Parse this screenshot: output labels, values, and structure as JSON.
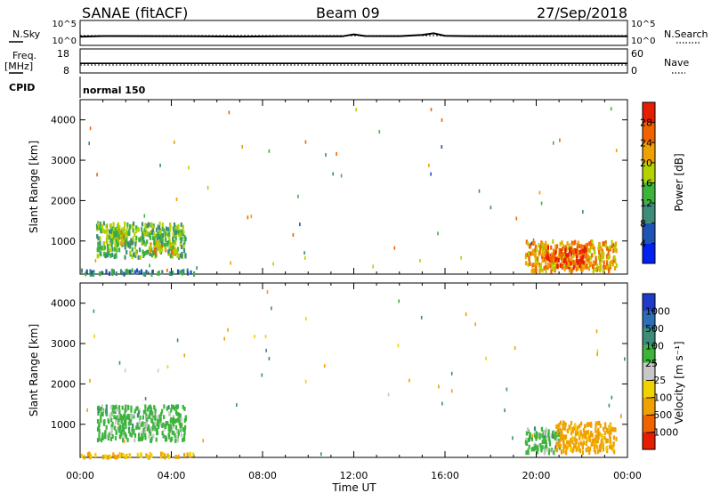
{
  "header": {
    "station": "SANAE (fitACF)",
    "beam": "Beam 09",
    "date": "27/Sep/2018"
  },
  "strips": {
    "nsky_label": "N.Sky",
    "nsearch_label": "N.Search",
    "nsky_ticks": [
      "10^5",
      "10^0"
    ],
    "nsearch_ticks": [
      "10^5",
      "10^0"
    ],
    "freq_label": "Freq.",
    "freq_unit": "[MHz]",
    "freq_ticks": [
      "18",
      "8"
    ],
    "nave_label": "Nave",
    "nave_ticks": [
      "60",
      "0"
    ],
    "cpid_label": "CPID",
    "cpid_value": "normal 150"
  },
  "axes": {
    "ylabel": "Slant Range [km]",
    "xlabel": "Time UT",
    "y_ticks": [
      "1000",
      "2000",
      "3000",
      "4000"
    ],
    "x_ticks": [
      "00:00",
      "04:00",
      "08:00",
      "12:00",
      "16:00",
      "20:00",
      "00:00"
    ]
  },
  "colorbars": {
    "power": {
      "label": "Power [dB]",
      "ticks": [
        "4",
        "8",
        "12",
        "16",
        "20",
        "24",
        "28"
      ],
      "colors": [
        "#0022ee",
        "#1e55b4",
        "#3c8c78",
        "#3cb43c",
        "#b4d200",
        "#f0a000",
        "#f06400",
        "#e61e00"
      ]
    },
    "velocity": {
      "label": "Velocity [m s⁻¹]",
      "ticks": [
        "1000",
        "500",
        "100",
        "25",
        "−25",
        "−100",
        "−500",
        "−1000"
      ],
      "colors": [
        "#1e3cc8",
        "#2d6eb4",
        "#3c8c78",
        "#3cb43c",
        "#c8c8c8",
        "#f0d200",
        "#f0a000",
        "#f06400",
        "#e61e00"
      ]
    }
  },
  "chart_data": [
    {
      "type": "line",
      "title": "SANAE (fitACF)",
      "xlabel": "",
      "ylabel": "N.Sky / N.Search",
      "x_hours": [
        0,
        1,
        3,
        5,
        7,
        9,
        11.5,
        12,
        12.5,
        14,
        15,
        15.5,
        16,
        17,
        19,
        21,
        23,
        24
      ],
      "series": [
        {
          "name": "N.Sky",
          "values": [
            20,
            30,
            28,
            25,
            22,
            25,
            26,
            80,
            30,
            28,
            60,
            150,
            35,
            28,
            26,
            27,
            26,
            25
          ]
        },
        {
          "name": "N.Search",
          "values": [
            40,
            40,
            40,
            40,
            40,
            40,
            40,
            40,
            40,
            40,
            40,
            40,
            40,
            40,
            40,
            40,
            40,
            40
          ]
        }
      ],
      "ylim": [
        1,
        100000
      ]
    },
    {
      "type": "line",
      "xlabel": "",
      "ylabel": "Freq. [MHz] / Nave",
      "x_hours": [
        0,
        24
      ],
      "series": [
        {
          "name": "Freq.",
          "values": [
            12,
            12
          ]
        },
        {
          "name": "Nave",
          "values": [
            20,
            20
          ]
        }
      ]
    },
    {
      "type": "heatmap",
      "xlabel": "Time UT",
      "ylabel": "Slant Range [km]",
      "colorbar": "Power [dB]",
      "xlim": [
        0,
        24
      ],
      "ylim": [
        180,
        4500
      ],
      "patches": [
        {
          "hours": [
            0.7,
            4.6
          ],
          "range_km": [
            600,
            1450
          ],
          "value": 14
        },
        {
          "hours": [
            1.0,
            2.0
          ],
          "range_km": [
            900,
            1300
          ],
          "value": 18
        },
        {
          "hours": [
            3.0,
            4.2
          ],
          "range_km": [
            700,
            1000
          ],
          "value": 20
        },
        {
          "hours": [
            19.5,
            23.5
          ],
          "range_km": [
            250,
            1000
          ],
          "value": 22
        },
        {
          "hours": [
            20.3,
            22.2
          ],
          "range_km": [
            350,
            850
          ],
          "value": 28
        },
        {
          "hours": [
            0.0,
            5.0
          ],
          "range_km": [
            180,
            280
          ],
          "value": 10
        }
      ]
    },
    {
      "type": "heatmap",
      "xlabel": "Time UT",
      "ylabel": "Slant Range [km]",
      "colorbar": "Velocity [m s⁻¹]",
      "xlim": [
        0,
        24
      ],
      "ylim": [
        180,
        4500
      ],
      "patches": [
        {
          "hours": [
            0.7,
            4.6
          ],
          "range_km": [
            600,
            1450
          ],
          "value": 50
        },
        {
          "hours": [
            19.5,
            21.0
          ],
          "range_km": [
            300,
            900
          ],
          "value": 50
        },
        {
          "hours": [
            20.8,
            23.5
          ],
          "range_km": [
            300,
            1050
          ],
          "value": -250
        },
        {
          "hours": [
            0.0,
            5.0
          ],
          "range_km": [
            180,
            280
          ],
          "value": -100
        }
      ]
    }
  ]
}
